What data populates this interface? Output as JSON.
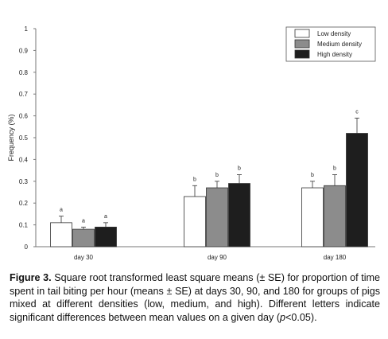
{
  "chart_data": {
    "type": "bar",
    "ylabel": "Frequency (%)",
    "ylim": [
      0,
      1
    ],
    "yticks": [
      "0",
      "0.1",
      "0.2",
      "0.3",
      "0.4",
      "0.5",
      "0.6",
      "0.7",
      "0.8",
      "0.9",
      "1"
    ],
    "categories": [
      "day 30",
      "day 90",
      "day 180"
    ],
    "legend_position": "top-right",
    "series": [
      {
        "name": "Low density",
        "color": "#ffffff",
        "values": [
          0.11,
          0.23,
          0.27
        ],
        "errors": [
          0.03,
          0.05,
          0.03
        ],
        "letters": [
          "a",
          "b",
          "b"
        ]
      },
      {
        "name": "Medium density",
        "color": "#8c8c8c",
        "values": [
          0.08,
          0.27,
          0.28
        ],
        "errors": [
          0.01,
          0.03,
          0.05
        ],
        "letters": [
          "a",
          "b",
          "b"
        ]
      },
      {
        "name": "High density",
        "color": "#1e1e1e",
        "values": [
          0.09,
          0.29,
          0.52
        ],
        "errors": [
          0.02,
          0.04,
          0.07
        ],
        "letters": [
          "a",
          "b",
          "c"
        ]
      }
    ]
  },
  "caption": {
    "label": "Figure 3.",
    "part1": " Square root transformed least square means (± SE) for proportion of time spent in tail biting per hour (means ± SE) at days 30, 90, and 180 for groups of pigs mixed at different densities (low, medium, and high). Different letters indicate significant differences between mean values on a given day (",
    "pvalue": "p",
    "part2": "<0.05)."
  }
}
